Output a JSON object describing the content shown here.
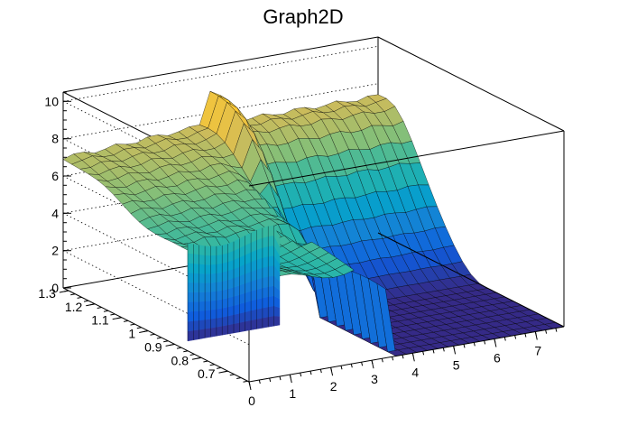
{
  "chart_data": {
    "type": "surface",
    "title": "Graph2D",
    "x": {
      "min": 0,
      "max": 7.7,
      "ticks": [
        0,
        1,
        2,
        3,
        4,
        5,
        6,
        7
      ],
      "tick_labels": [
        "0",
        "1",
        "2",
        "3",
        "4",
        "5",
        "6",
        "7"
      ]
    },
    "y": {
      "min": 0.62,
      "max": 1.32,
      "ticks": [
        0.7,
        0.8,
        0.9,
        1.0,
        1.1,
        1.2,
        1.3
      ],
      "tick_labels": [
        "0.7",
        "0.8",
        "0.9",
        "1",
        "1.1",
        "1.2",
        "1.3"
      ]
    },
    "z": {
      "min": 0,
      "max": 10.5,
      "ticks": [
        0,
        2,
        4,
        6,
        8,
        10
      ],
      "tick_labels": [
        "0",
        "2",
        "4",
        "6",
        "8",
        "10"
      ]
    },
    "grid": true,
    "colormap": [
      "#352a87",
      "#0f5cdd",
      "#1481d6",
      "#06a4ca",
      "#2eb7a4",
      "#87bf77",
      "#d1bb59",
      "#fec832",
      "#f9fb0e"
    ],
    "features": [
      {
        "description": "high plateau",
        "x_range": [
          0,
          3.1
        ],
        "y_range": [
          0.62,
          0.9
        ],
        "z": 5.4
      },
      {
        "description": "empty gap (no data)",
        "x_range": [
          2.6,
          3.1
        ],
        "y_range": [
          0.62,
          0.78
        ],
        "z": null
      },
      {
        "description": "flat region",
        "x_range": [
          3.5,
          7.7
        ],
        "y_range": [
          0.62,
          0.92
        ],
        "z": 0
      },
      {
        "description": "ridge ending in peak",
        "x": 3.7,
        "y": 1.3,
        "z_peak": 9.8
      },
      {
        "description": "back slope",
        "y_range": [
          0.92,
          1.32
        ],
        "z_range": [
          5.3,
          7.6
        ]
      }
    ]
  }
}
